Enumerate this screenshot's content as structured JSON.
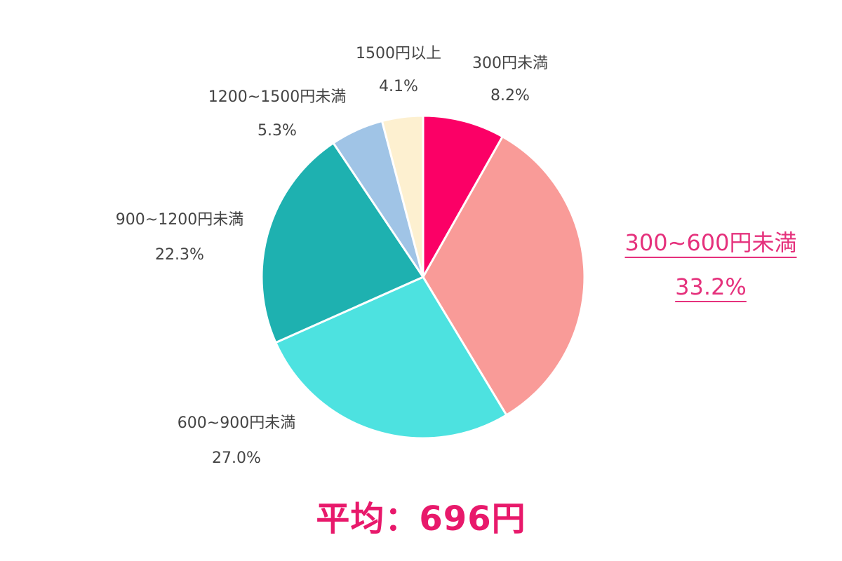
{
  "chart_data": {
    "type": "pie",
    "start_angle_deg": 0,
    "direction": "clockwise",
    "slices": [
      {
        "name": "300円未満",
        "value": 8.2,
        "label": "8.2%",
        "color": "#fb0066",
        "highlight": false
      },
      {
        "name": "300~600円未満",
        "value": 33.2,
        "label": "33.2%",
        "color": "#f99b98",
        "highlight": true
      },
      {
        "name": "600~900円未満",
        "value": 27.0,
        "label": "27.0%",
        "color": "#4de2e0",
        "highlight": false
      },
      {
        "name": "900~1200円未満",
        "value": 22.3,
        "label": "22.3%",
        "color": "#1eb1b0",
        "highlight": false
      },
      {
        "name": "1200~1500円未満",
        "value": 5.3,
        "label": "5.3%",
        "color": "#a0c4e6",
        "highlight": false
      },
      {
        "name": "1500円以上",
        "value": 4.1,
        "label": "4.1%",
        "color": "#fdf0d0",
        "highlight": false
      }
    ],
    "highlight_color": "#e5317c"
  },
  "summary": {
    "average_text": "平均：696円",
    "color": "#e8196b"
  }
}
